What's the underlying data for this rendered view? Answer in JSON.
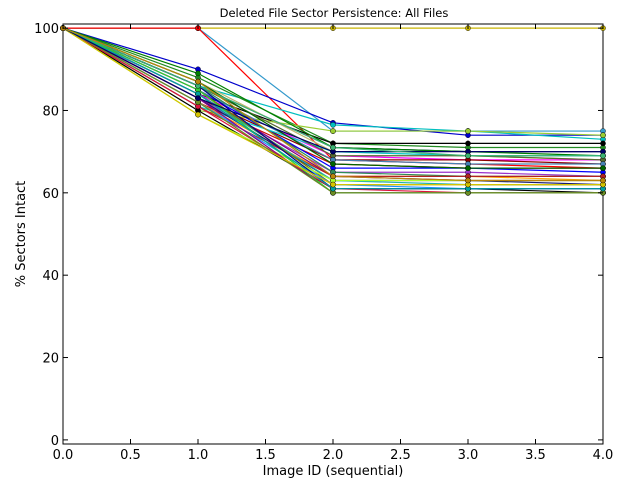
{
  "chart_data": {
    "type": "line",
    "title": "Deleted File Sector Persistence: All Files",
    "xlabel": "Image ID (sequential)",
    "ylabel": "% Sectors Intact",
    "xlim": [
      0.0,
      4.0
    ],
    "ylim": [
      -1,
      101
    ],
    "x": [
      0,
      1,
      2,
      3,
      4
    ],
    "xticks": [
      0.0,
      0.5,
      1.0,
      1.5,
      2.0,
      2.5,
      3.0,
      3.5,
      4.0
    ],
    "xtick_labels": [
      "0.0",
      "0.5",
      "1.0",
      "1.5",
      "2.0",
      "2.5",
      "3.0",
      "3.5",
      "4.0"
    ],
    "yticks": [
      0,
      20,
      40,
      60,
      80,
      100
    ],
    "ytick_labels": [
      "0",
      "20",
      "40",
      "60",
      "80",
      "100"
    ],
    "grid": false,
    "legend": "none",
    "marker": "circle",
    "series": [
      {
        "color": "#c8b400",
        "values": [
          100,
          100,
          100,
          100,
          100
        ]
      },
      {
        "color": "#3399cc",
        "values": [
          100,
          100,
          75,
          75,
          75
        ]
      },
      {
        "color": "#ff0000",
        "values": [
          100,
          100,
          68,
          67,
          66
        ]
      },
      {
        "color": "#0000cc",
        "values": [
          100,
          90,
          77,
          74,
          74
        ]
      },
      {
        "color": "#00bfbf",
        "values": [
          100,
          86,
          76.5,
          75,
          73
        ]
      },
      {
        "color": "#228b22",
        "values": [
          100,
          88,
          72,
          71,
          71
        ]
      },
      {
        "color": "#000000",
        "values": [
          100,
          84,
          72,
          72,
          72
        ]
      },
      {
        "color": "#000080",
        "values": [
          100,
          86,
          71,
          70,
          70
        ]
      },
      {
        "color": "#9acd32",
        "values": [
          100,
          80,
          75,
          75,
          74
        ]
      },
      {
        "color": "#008000",
        "values": [
          100,
          89,
          71,
          70,
          69
        ]
      },
      {
        "color": "#bdb76b",
        "values": [
          100,
          87,
          70,
          69,
          68
        ]
      },
      {
        "color": "#ff00ff",
        "values": [
          100,
          84,
          69,
          68,
          68
        ]
      },
      {
        "color": "#8b0000",
        "values": [
          100,
          83,
          68,
          68,
          67
        ]
      },
      {
        "color": "#cc0000",
        "values": [
          100,
          82,
          67,
          66,
          66
        ]
      },
      {
        "color": "#0000ff",
        "values": [
          100,
          85,
          66,
          66,
          65
        ]
      },
      {
        "color": "#00ced1",
        "values": [
          100,
          81,
          70,
          69,
          69
        ]
      },
      {
        "color": "#556b2f",
        "values": [
          100,
          86,
          69,
          69,
          68
        ]
      },
      {
        "color": "#4682b4",
        "values": [
          100,
          85,
          68,
          67,
          67
        ]
      },
      {
        "color": "#9932cc",
        "values": [
          100,
          83,
          65,
          65,
          64
        ]
      },
      {
        "color": "#006400",
        "values": [
          100,
          87,
          67,
          66,
          66
        ]
      },
      {
        "color": "#ffa500",
        "values": [
          100,
          82,
          64,
          64,
          63
        ]
      },
      {
        "color": "#800080",
        "values": [
          100,
          84,
          64,
          63,
          63
        ]
      },
      {
        "color": "#2e8b57",
        "values": [
          100,
          86,
          65,
          64,
          64
        ]
      },
      {
        "color": "#191970",
        "values": [
          100,
          83,
          63,
          63,
          62
        ]
      },
      {
        "color": "#b22222",
        "values": [
          100,
          81,
          64,
          64,
          64
        ]
      },
      {
        "color": "#20b2aa",
        "values": [
          100,
          84,
          63,
          62,
          62
        ]
      },
      {
        "color": "#808000",
        "values": [
          100,
          85,
          62,
          62,
          62
        ]
      },
      {
        "color": "#000000",
        "values": [
          100,
          80,
          61,
          61,
          60
        ]
      },
      {
        "color": "#1e90ff",
        "values": [
          100,
          82,
          62,
          61,
          61
        ]
      },
      {
        "color": "#adff2f",
        "values": [
          100,
          79,
          63,
          63,
          63
        ]
      },
      {
        "color": "#8b008b",
        "values": [
          100,
          83,
          60,
          60,
          60
        ]
      },
      {
        "color": "#00008b",
        "values": [
          100,
          86,
          61,
          61,
          61
        ]
      },
      {
        "color": "#dc143c",
        "values": [
          100,
          81,
          61,
          60,
          60
        ]
      },
      {
        "color": "#32cd32",
        "values": [
          100,
          85,
          60,
          60,
          60
        ]
      },
      {
        "color": "#6b8e23",
        "values": [
          100,
          82,
          60,
          60,
          60
        ]
      },
      {
        "color": "#00a0a0",
        "values": [
          100,
          84,
          61,
          61,
          61
        ]
      },
      {
        "color": "#d4c400",
        "values": [
          100,
          79,
          62,
          62,
          62
        ]
      },
      {
        "color": "#000066",
        "values": [
          100,
          83,
          70,
          70,
          70
        ]
      },
      {
        "color": "#3cb371",
        "values": [
          100,
          86,
          71,
          69,
          69
        ]
      },
      {
        "color": "#b8860b",
        "values": [
          100,
          87,
          64,
          63,
          63
        ]
      }
    ]
  }
}
